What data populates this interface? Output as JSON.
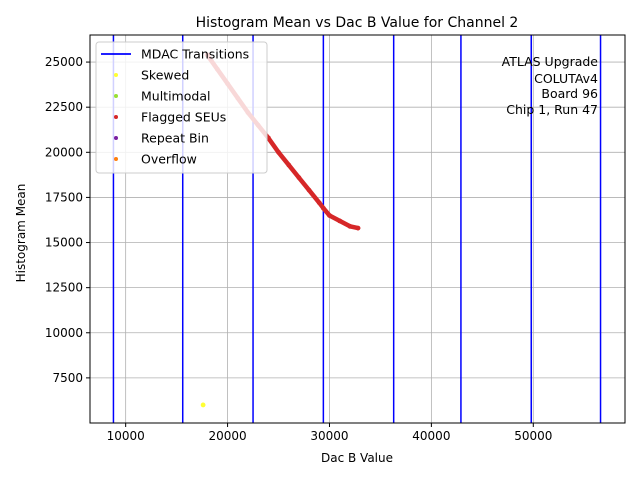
{
  "chart_data": {
    "type": "scatter",
    "title": "Histogram Mean vs Dac B Value for Channel 2",
    "xlabel": "Dac B Value",
    "ylabel": "Histogram Mean",
    "xlim": [
      6500,
      59000
    ],
    "ylim": [
      5000,
      26500
    ],
    "x_ticks": [
      10000,
      20000,
      30000,
      40000,
      50000
    ],
    "x_tick_labels": [
      "10000",
      "20000",
      "30000",
      "40000",
      "50000"
    ],
    "y_ticks": [
      7500,
      10000,
      12500,
      15000,
      17500,
      20000,
      22500,
      25000
    ],
    "y_tick_labels": [
      "7500",
      "10000",
      "12500",
      "15000",
      "17500",
      "20000",
      "22500",
      "25000"
    ],
    "grid": true,
    "legend_position": "top-left",
    "legend": [
      {
        "label": "MDAC Transitions",
        "kind": "line",
        "color": "#0000ff"
      },
      {
        "label": "Skewed",
        "kind": "point",
        "color": "#ffff33"
      },
      {
        "label": "Multimodal",
        "kind": "point",
        "color": "#99e033"
      },
      {
        "label": "Flagged SEUs",
        "kind": "point",
        "color": "#d62728"
      },
      {
        "label": "Repeat Bin",
        "kind": "point",
        "color": "#7b1fa2"
      },
      {
        "label": "Overflow",
        "kind": "point",
        "color": "#ff7f0e"
      }
    ],
    "mdac_transitions": [
      8800,
      15600,
      22500,
      29400,
      36300,
      42900,
      49800,
      56600
    ],
    "series": [
      {
        "name": "Flagged SEUs",
        "color": "#d62728",
        "x": [
          18000,
          19000,
          20000,
          21000,
          22000,
          23000,
          24000,
          25000,
          26000,
          27000,
          28000,
          29000,
          29400,
          30000,
          31000,
          32000,
          32800
        ],
        "y": [
          25400,
          24600,
          23800,
          23000,
          22200,
          21500,
          20800,
          20000,
          19300,
          18600,
          17900,
          17200,
          16900,
          16500,
          16200,
          15900,
          15800
        ]
      },
      {
        "name": "Skewed",
        "color": "#ffff33",
        "x": [
          17600
        ],
        "y": [
          6000
        ]
      }
    ],
    "annotation": [
      "ATLAS Upgrade",
      "COLUTAv4",
      "Board 96",
      "Chip 1, Run 47"
    ]
  }
}
